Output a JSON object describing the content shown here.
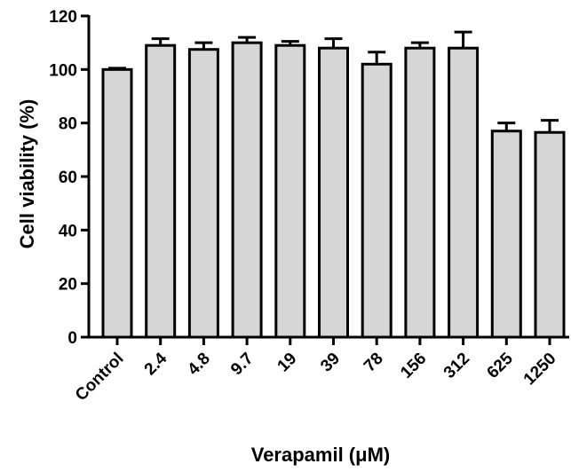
{
  "chart_data": {
    "type": "bar",
    "xlabel": "Verapamil (μM)",
    "ylabel": "Cell viability (%)",
    "ylim": [
      0,
      120
    ],
    "yticks": [
      0,
      20,
      40,
      60,
      80,
      100,
      120
    ],
    "grid": false,
    "colors": {
      "bar_fill": "#d6d6d6",
      "stroke": "#000000"
    },
    "categories": [
      "Control",
      "2.4",
      "4.8",
      "9.7",
      "19",
      "39",
      "78",
      "156",
      "312",
      "625",
      "1250"
    ],
    "values": [
      100,
      109,
      107.5,
      110,
      109,
      108,
      102,
      108,
      108,
      77,
      76.5
    ],
    "errors": [
      0.5,
      2.5,
      2.5,
      2,
      1.5,
      3.5,
      4.5,
      2,
      6,
      3,
      4.5
    ]
  }
}
